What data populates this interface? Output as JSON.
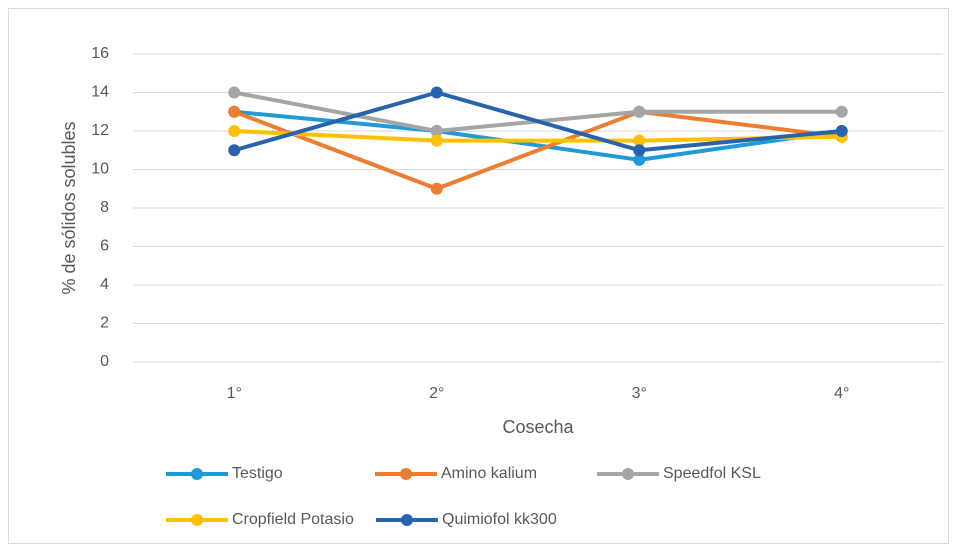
{
  "chart_data": {
    "type": "line",
    "categories": [
      "1°",
      "2°",
      "3°",
      "4°"
    ],
    "x_label": "Cosecha",
    "y_label": "% de sólidos solubles",
    "ylim": [
      0,
      16
    ],
    "yticks": [
      0,
      2,
      4,
      6,
      8,
      10,
      12,
      14,
      16
    ],
    "grid": true,
    "legend": "bottom",
    "series": [
      {
        "name": "Testigo",
        "color": "#1f9ad6",
        "values": [
          13,
          12,
          10.5,
          12
        ]
      },
      {
        "name": "Amino kalium",
        "color": "#ed7d31",
        "values": [
          13,
          9,
          13,
          11.7
        ]
      },
      {
        "name": "Speedfol KSL",
        "color": "#a5a5a5",
        "values": [
          14,
          12,
          13,
          13
        ]
      },
      {
        "name": "Cropfield Potasio",
        "color": "#ffc000",
        "values": [
          12,
          11.5,
          11.5,
          11.7
        ]
      },
      {
        "name": "Quimiofol kk300",
        "color": "#2764ad",
        "values": [
          11,
          14,
          11,
          12
        ]
      }
    ]
  }
}
